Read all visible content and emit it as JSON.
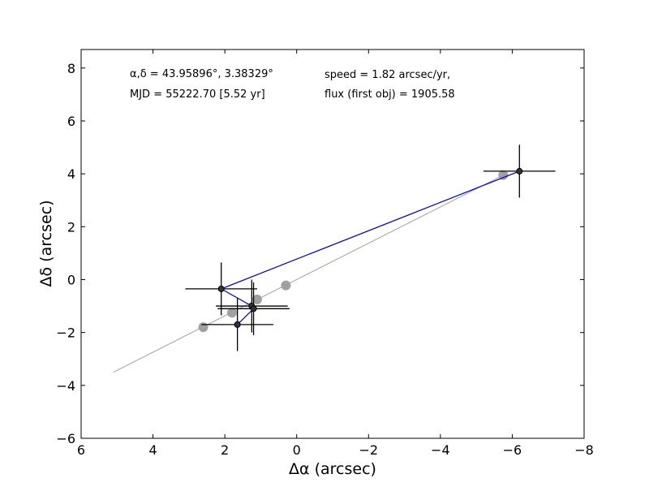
{
  "chart_data": {
    "type": "scatter",
    "xlabel": "Δα (arcsec)",
    "ylabel": "Δδ (arcsec)",
    "xlim": [
      6,
      -8
    ],
    "ylim": [
      -6,
      8.7
    ],
    "xticks": [
      6,
      4,
      2,
      0,
      -2,
      -4,
      -6,
      -8
    ],
    "yticks": [
      -6,
      -4,
      -2,
      0,
      2,
      4,
      6,
      8
    ],
    "xtick_labels": [
      "6",
      "4",
      "2",
      "0",
      "−2",
      "−4",
      "−6",
      "−8"
    ],
    "ytick_labels": [
      "−6",
      "−4",
      "−2",
      "0",
      "2",
      "4",
      "6",
      "8"
    ],
    "grid": false,
    "annotations": {
      "coords": "α,δ = 43.95896°, 3.38329°",
      "mjd": "MJD = 55222.70 [5.52 yr]",
      "speed": "speed = 1.82 arcsec/yr,",
      "flux": "flux (first obj) = 1905.58"
    },
    "series": [
      {
        "role": "observed",
        "color": "#0000cc",
        "marker_color": "#333333",
        "x": [
          -6.2,
          2.1,
          1.25,
          1.2,
          1.65
        ],
        "y": [
          4.1,
          -0.35,
          -1.0,
          -1.1,
          -1.7
        ],
        "xerr": [
          1.0,
          1.0,
          1.0,
          1.0,
          1.0
        ],
        "yerr": [
          1.0,
          1.0,
          1.0,
          1.0,
          1.0
        ]
      },
      {
        "role": "model",
        "color": "#a0a0a0",
        "x": [
          -5.75,
          0.3,
          1.1,
          1.8,
          2.6
        ],
        "y": [
          3.95,
          -0.22,
          -0.75,
          -1.25,
          -1.8
        ]
      }
    ],
    "fit_line": {
      "color": "#a0a0a0",
      "x": [
        5.1,
        -5.75
      ],
      "y": [
        -3.5,
        3.95
      ]
    }
  }
}
